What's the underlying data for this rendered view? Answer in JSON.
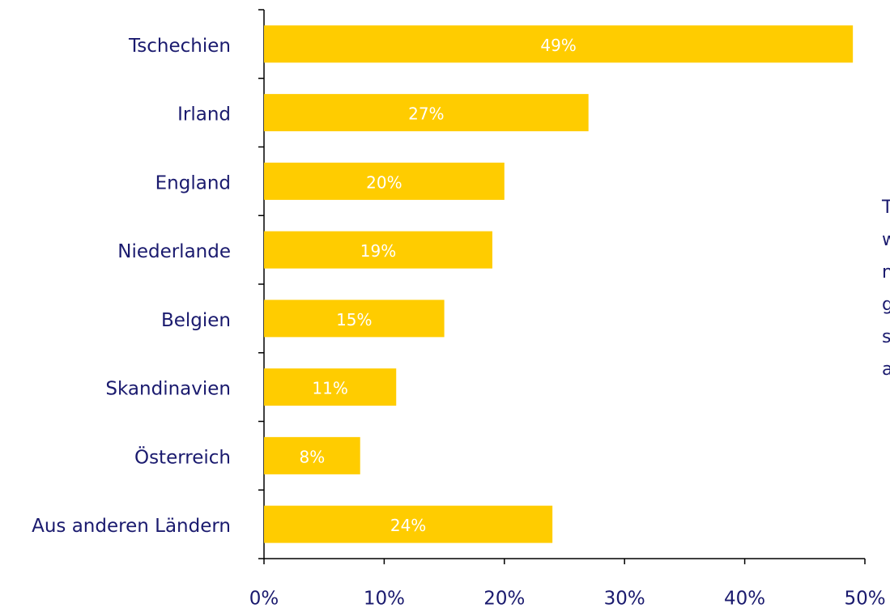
{
  "chart_data": {
    "type": "bar",
    "orientation": "horizontal",
    "categories": [
      "Tschechien",
      "Irland",
      "England",
      "Niederlande",
      "Belgien",
      "Skandinavien",
      "Österreich",
      "Aus anderen Ländern"
    ],
    "values": [
      49,
      27,
      20,
      19,
      15,
      11,
      8,
      24
    ],
    "value_labels": [
      "49%",
      "27%",
      "20%",
      "19%",
      "15%",
      "11%",
      "8%",
      "24%"
    ],
    "color": "#ffcc00",
    "xlim": [
      0,
      50
    ],
    "xticks": [
      {
        "value": 0,
        "label": "0%"
      },
      {
        "value": 10,
        "label": "10%"
      },
      {
        "value": 20,
        "label": "20%"
      },
      {
        "value": 30,
        "label": "30%"
      },
      {
        "value": 40,
        "label": "40%"
      },
      {
        "value": 50,
        "label": "50%"
      }
    ],
    "annotation_lines": [
      "T",
      "w",
      "n",
      "g",
      "s",
      "a"
    ]
  }
}
